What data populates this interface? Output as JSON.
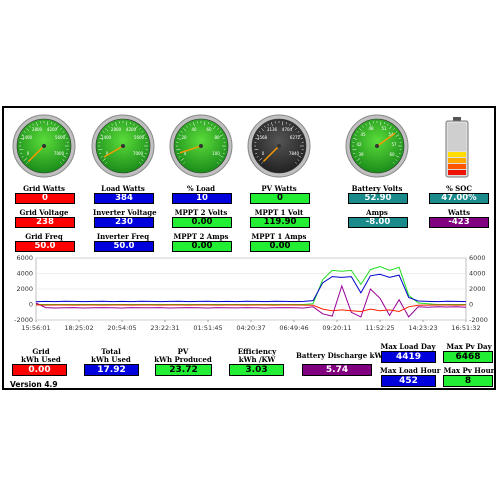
{
  "gauges": [
    {
      "name": "grid-watts",
      "ticks": [
        "2800",
        "4200",
        "1400",
        "5600",
        "0",
        "7000"
      ],
      "needle": 0,
      "face": "green",
      "max": 7000
    },
    {
      "name": "load-watts",
      "ticks": [
        "2800",
        "4200",
        "1400",
        "5600",
        "0",
        "7000"
      ],
      "needle": 384,
      "face": "green",
      "max": 7000
    },
    {
      "name": "load-percent",
      "ticks": [
        "40",
        "60",
        "20",
        "80",
        "0",
        "100"
      ],
      "needle": 10,
      "face": "green",
      "max": 100
    },
    {
      "name": "pv-watts",
      "ticks": [
        "3136",
        "4704",
        "1568",
        "6272",
        "0",
        "7840"
      ],
      "needle": 0,
      "face": "dark",
      "max": 7840
    },
    {
      "name": "battery-volts",
      "ticks": [
        "48",
        "51",
        "45",
        "54",
        "42",
        "57",
        "39",
        "60"
      ],
      "needle": 52.9,
      "face": "green",
      "min": 36,
      "max": 60
    }
  ],
  "labels": {
    "grid_watts": "Grid Watts",
    "load_watts": "Load Watts",
    "pct_load": "% Load",
    "pv_watts": "PV Watts",
    "battery_volts": "Battery Volts",
    "soc": "% SOC",
    "grid_voltage": "Grid Voltage",
    "inverter_voltage": "Inverter Voltage",
    "mppt2_volts": "MPPT 2 Volts",
    "mppt1_volt": "MPPT 1 Volt",
    "amps": "Amps",
    "watts": "Watts",
    "grid_freq": "Grid Freq",
    "inverter_freq": "Inverter Freq",
    "mppt2_amps": "MPPT 2 Amps",
    "mppt1_amps": "MPPT 1 Amps",
    "grid_kwh_1": "Grid",
    "grid_kwh_2": "kWh Used",
    "total_kwh_1": "Total",
    "total_kwh_2": "kWh Used",
    "pv_kwh_1": "PV",
    "pv_kwh_2": "kWh Produced",
    "eff_1": "Efficiency",
    "eff_2": "kWh /KW",
    "batt_dis": "Battery Discharge kWh",
    "max_load_day": "Max Load Day",
    "max_pv_day": "Max Pv Day",
    "max_load_hour": "Max Load Hour",
    "max_pv_hour": "Max Pv Hour"
  },
  "values": {
    "grid_watts": "0",
    "load_watts": "384",
    "pct_load": "10",
    "pv_watts": "0",
    "battery_volts": "52.90",
    "soc": "47.00%",
    "grid_voltage": "238",
    "inverter_voltage": "230",
    "mppt2_volts": "0.00",
    "mppt1_volt": "119.90",
    "amps": "-8.00",
    "watts": "-423",
    "grid_freq": "50.0",
    "inverter_freq": "50.0",
    "mppt2_amps": "0.00",
    "mppt1_amps": "0.00",
    "grid_kwh": "0.00",
    "total_kwh": "17.92",
    "pv_kwh": "23.72",
    "efficiency": "3.03",
    "batt_dis": "5.74",
    "max_load_day": "4419",
    "max_pv_day": "6468",
    "max_load_hour": "452",
    "max_pv_hour": "8"
  },
  "battery": {
    "soc_percent": 47
  },
  "version": "Version 4.9",
  "chart_data": {
    "type": "line",
    "y_ticks": [
      "6000",
      "4000",
      "2000",
      "0",
      "-2000"
    ],
    "y2_ticks": [
      "6000",
      "4000",
      "2000",
      "0",
      "-2000"
    ],
    "ylim": [
      -2000,
      6000
    ],
    "x_ticks": [
      "15:56:01",
      "18:25:02",
      "20:54:05",
      "23:22:31",
      "01:51:45",
      "04:20:37",
      "06:49:46",
      "09:20:11",
      "11:52:25",
      "14:23:23",
      "16:51:32"
    ],
    "series": [
      {
        "color": "#22dd22",
        "values": [
          0,
          0,
          0,
          0,
          0,
          0,
          0,
          0,
          0,
          0,
          0,
          0,
          0,
          0,
          0,
          0,
          0,
          0,
          0,
          0,
          0,
          0,
          0,
          0,
          0,
          0,
          0,
          0,
          0,
          100,
          3200,
          4400,
          4300,
          4400,
          2600,
          4500,
          4900,
          4400,
          4800,
          1200,
          200,
          100,
          0,
          0,
          0,
          0
        ]
      },
      {
        "color": "#0000cc",
        "values": [
          350,
          400,
          380,
          420,
          400,
          380,
          400,
          420,
          380,
          400,
          380,
          420,
          400,
          380,
          400,
          420,
          380,
          400,
          420,
          380,
          400,
          380,
          420,
          400,
          380,
          420,
          400,
          380,
          400,
          500,
          2800,
          3600,
          3500,
          3600,
          1500,
          3700,
          3900,
          3500,
          3800,
          900,
          450,
          400,
          380,
          420,
          400,
          380
        ]
      },
      {
        "color": "#990099",
        "values": [
          200,
          -400,
          -450,
          -420,
          -400,
          -450,
          -430,
          -400,
          -420,
          -450,
          -400,
          -430,
          -420,
          -400,
          -450,
          -420,
          -400,
          -430,
          -450,
          -400,
          -420,
          -440,
          -400,
          -420,
          -450,
          -430,
          -400,
          -420,
          -450,
          -300,
          -1200,
          -1500,
          2400,
          -1000,
          -1600,
          2000,
          800,
          -1400,
          600,
          -1600,
          -300,
          -350,
          -300,
          -320,
          -300,
          -350
        ]
      },
      {
        "color": "#ff2200",
        "values": [
          -50,
          -80,
          -60,
          -70,
          -80,
          -60,
          -70,
          -80,
          -60,
          -70,
          -80,
          -60,
          -70,
          -80,
          -60,
          -70,
          -80,
          -60,
          -70,
          -80,
          -60,
          -70,
          -80,
          -60,
          -70,
          -80,
          -60,
          -70,
          -80,
          -100,
          -600,
          -800,
          -700,
          -800,
          -900,
          -600,
          -800,
          -700,
          -900,
          -300,
          -100,
          -80,
          -60,
          -70,
          -80,
          -60
        ]
      }
    ]
  }
}
